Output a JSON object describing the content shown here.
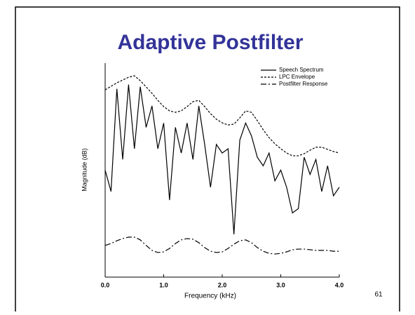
{
  "chart_data": {
    "type": "line",
    "title": "Adaptive Postfilter",
    "xlabel": "Frequency (kHz)",
    "ylabel": "Magnitude (dB)",
    "x": [
      0,
      0.1,
      0.2,
      0.3,
      0.4,
      0.5,
      0.6,
      0.7,
      0.8,
      0.9,
      1.0,
      1.1,
      1.2,
      1.3,
      1.4,
      1.5,
      1.6,
      1.7,
      1.8,
      1.9,
      2.0,
      2.1,
      2.2,
      2.3,
      2.4,
      2.5,
      2.6,
      2.7,
      2.8,
      2.9,
      3.0,
      3.1,
      3.2,
      3.3,
      3.4,
      3.5,
      3.6,
      3.7,
      3.8,
      3.9,
      4.0
    ],
    "xlim": [
      0,
      4
    ],
    "xticks": [
      {
        "value": 0,
        "label": "0.0"
      },
      {
        "value": 1,
        "label": "1.0"
      },
      {
        "value": 2,
        "label": "2.0"
      },
      {
        "value": 3,
        "label": "3.0"
      },
      {
        "value": 4,
        "label": "4.0"
      }
    ],
    "ylim": [
      0,
      100
    ],
    "legend": "upper right",
    "series": [
      {
        "name": "Speech Spectrum",
        "color": "#000000",
        "dash": "none",
        "values": [
          50,
          40,
          88,
          55,
          90,
          60,
          89,
          70,
          80,
          60,
          72,
          36,
          70,
          58,
          72,
          55,
          80,
          62,
          42,
          62,
          58,
          60,
          20,
          64,
          72,
          66,
          56,
          52,
          58,
          45,
          50,
          42,
          30,
          32,
          56,
          48,
          55,
          40,
          52,
          38,
          42
        ]
      },
      {
        "name": "LPC Envelope",
        "color": "#000000",
        "dash": "3,2",
        "values": [
          87.5,
          89.2,
          90.8,
          92.1,
          93.4,
          94.1,
          91.8,
          88.9,
          85.9,
          82.6,
          79.7,
          77.7,
          77.0,
          77.7,
          79.7,
          82.0,
          82.6,
          79.7,
          76.4,
          73.8,
          72.1,
          71.1,
          71.5,
          74.4,
          77.7,
          77.0,
          73.1,
          68.9,
          65.2,
          62.3,
          60.0,
          58.0,
          56.7,
          56.7,
          57.7,
          59.3,
          60.7,
          60.7,
          59.7,
          58.7,
          58.0
        ]
      },
      {
        "name": "Postfilter Response",
        "color": "#000000",
        "dash": "8,3,2,3",
        "values": [
          14.8,
          15.7,
          17.0,
          18.0,
          18.7,
          18.7,
          17.4,
          14.8,
          12.5,
          11.5,
          11.8,
          13.4,
          15.7,
          17.4,
          18.0,
          17.7,
          16.1,
          13.8,
          12.1,
          11.5,
          11.8,
          13.4,
          15.4,
          17.0,
          17.4,
          16.1,
          13.8,
          12.1,
          11.1,
          10.8,
          11.1,
          11.8,
          12.8,
          13.1,
          13.1,
          12.8,
          12.5,
          12.5,
          12.5,
          12.1,
          12.1
        ]
      }
    ]
  },
  "page_number": "61"
}
